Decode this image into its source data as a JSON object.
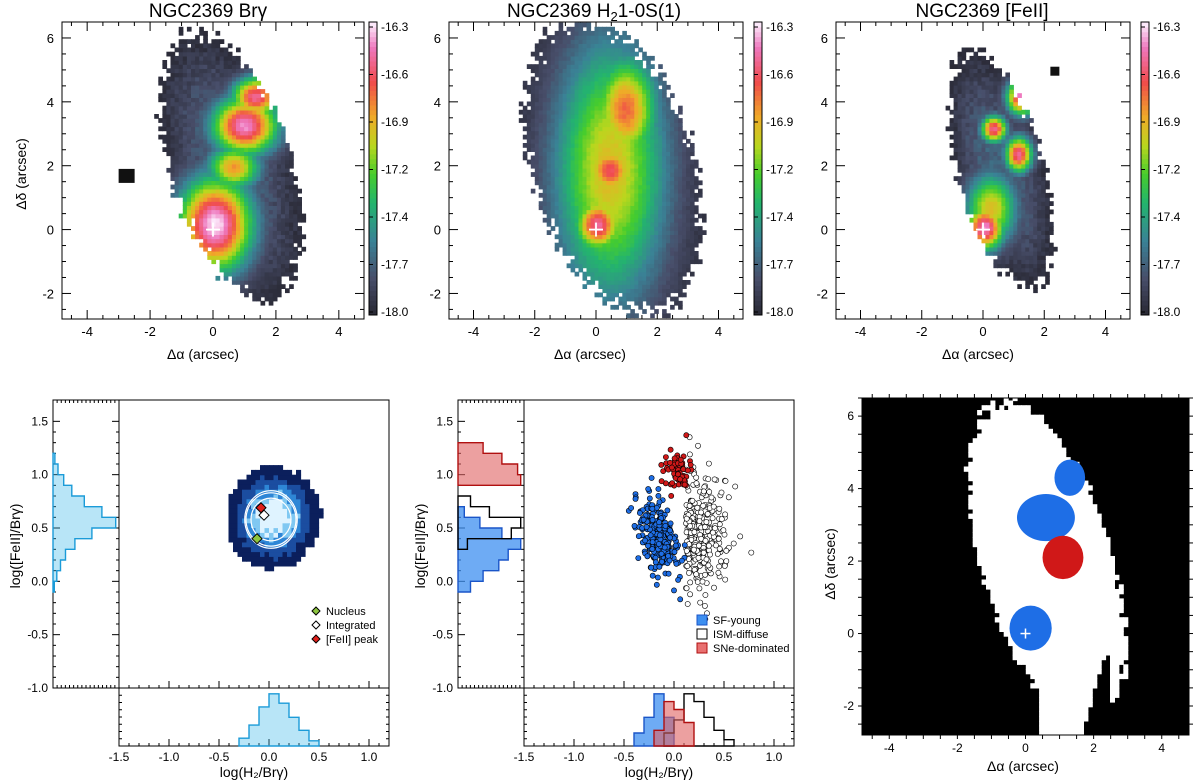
{
  "figure": {
    "top_row": [
      {
        "title_main": "NGC2369 Br",
        "title_greek": "γ",
        "xlabel": "Δα (arcsec)",
        "ylabel": "Δδ (arcsec)"
      },
      {
        "title_main": "NGC2369 H",
        "title_sub": "2",
        "title_rest": "1-0S(1)",
        "xlabel": "Δα (arcsec)"
      },
      {
        "title_main": "NGC2369 [FeII]",
        "xlabel": "Δα (arcsec)"
      }
    ],
    "bottom_left": {
      "ylabel": "log([FeII]/Brγ)",
      "xlabel": "log(H₂/Brγ)"
    },
    "bottom_mid": {
      "ylabel": "log([FeII]/Brγ)",
      "xlabel": "log(H₂/Brγ)"
    },
    "bottom_right": {
      "xlabel": "Δα (arcsec)",
      "ylabel": "Δδ (arcsec)"
    }
  },
  "chart_data": [
    {
      "type": "heatmap",
      "panel": "brgamma_map",
      "title": "NGC2369 Brγ",
      "xlabel": "Δα (arcsec)",
      "ylabel": "Δδ (arcsec)",
      "xlim": [
        -4.8,
        4.8
      ],
      "ylim": [
        -2.8,
        6.5
      ],
      "xticks": [
        -4,
        -2,
        0,
        2,
        4
      ],
      "yticks": [
        -2,
        0,
        2,
        4,
        6
      ],
      "colorbar": {
        "ticks": [
          "-16.3",
          "-16.6",
          "-16.9",
          "-17.2",
          "-17.4",
          "-17.7",
          "-18.0"
        ],
        "range": [
          -18.0,
          -16.3
        ]
      },
      "blobs": [
        {
          "x": 0.0,
          "y": 0.1,
          "sx": 0.85,
          "sy": 1.05,
          "peak": -16.3
        },
        {
          "x": 0.95,
          "y": 3.2,
          "sx": 0.75,
          "sy": 0.65,
          "peak": -16.4
        },
        {
          "x": 1.3,
          "y": 4.1,
          "sx": 0.55,
          "sy": 0.45,
          "peak": -16.5
        },
        {
          "x": 0.6,
          "y": 1.9,
          "sx": 0.6,
          "sy": 0.5,
          "peak": -16.8
        }
      ],
      "extent": {
        "x": 0.5,
        "y": 1.9,
        "rx": 1.9,
        "ry": 4.3,
        "angle": -18
      },
      "marker": {
        "x": 0,
        "y": 0
      }
    },
    {
      "type": "heatmap",
      "panel": "h2_map",
      "title": "NGC2369 H21-0S(1)",
      "xlabel": "Δα (arcsec)",
      "xlim": [
        -4.8,
        4.8
      ],
      "ylim": [
        -2.8,
        6.5
      ],
      "xticks": [
        -4,
        -2,
        0,
        2,
        4
      ],
      "yticks": [
        -2,
        0,
        2,
        4,
        6
      ],
      "colorbar": {
        "ticks": [
          "-16.3",
          "-16.6",
          "-16.9",
          "-17.2",
          "-17.4",
          "-17.7",
          "-18.0"
        ],
        "range": [
          -18.0,
          -16.3
        ]
      },
      "blobs": [
        {
          "x": 0.0,
          "y": 0.1,
          "sx": 0.55,
          "sy": 0.6,
          "peak": -16.5
        },
        {
          "x": 0.4,
          "y": 1.8,
          "sx": 0.6,
          "sy": 0.6,
          "peak": -16.6
        },
        {
          "x": 0.9,
          "y": 3.7,
          "sx": 0.75,
          "sy": 1.2,
          "peak": -16.7
        },
        {
          "x": 0.4,
          "y": 1.8,
          "sx": 1.3,
          "sy": 2.9,
          "peak": -16.9
        }
      ],
      "extent": {
        "x": 0.5,
        "y": 1.9,
        "rx": 2.6,
        "ry": 4.7,
        "angle": -18
      },
      "marker": {
        "x": 0,
        "y": 0
      }
    },
    {
      "type": "heatmap",
      "panel": "feii_map",
      "title": "NGC2369 [FeII]",
      "xlabel": "Δα (arcsec)",
      "xlim": [
        -4.8,
        4.8
      ],
      "ylim": [
        -2.8,
        6.5
      ],
      "xticks": [
        -4,
        -2,
        0,
        2,
        4
      ],
      "yticks": [
        -2,
        0,
        2,
        4,
        6
      ],
      "colorbar": {
        "ticks": [
          "-16.3",
          "-16.6",
          "-16.9",
          "-17.2",
          "-17.4",
          "-17.7",
          "-18.0"
        ],
        "range": [
          -18.0,
          -16.3
        ]
      },
      "blobs": [
        {
          "x": 0.0,
          "y": 0.0,
          "sx": 0.45,
          "sy": 0.5,
          "peak": -16.4
        },
        {
          "x": 1.2,
          "y": 4.1,
          "sx": 0.35,
          "sy": 0.4,
          "peak": -16.4
        },
        {
          "x": 0.3,
          "y": 3.1,
          "sx": 0.3,
          "sy": 0.3,
          "peak": -16.5
        },
        {
          "x": 1.1,
          "y": 2.3,
          "sx": 0.32,
          "sy": 0.4,
          "peak": -16.5
        },
        {
          "x": 0.2,
          "y": 0.6,
          "sx": 0.6,
          "sy": 0.8,
          "peak": -16.9
        }
      ],
      "extent": {
        "x": 0.5,
        "y": 1.8,
        "rx": 1.4,
        "ry": 3.8,
        "angle": -16
      },
      "marker": {
        "x": 0,
        "y": 0
      }
    },
    {
      "type": "heatmap",
      "panel": "density_diagram",
      "xlabel": "log(H₂/Brγ)",
      "ylabel": "log([FeII]/Brγ)",
      "xlim": [
        -1.5,
        1.2
      ],
      "ylim": [
        -1.0,
        1.7
      ],
      "xticks": [
        -1.5,
        -1.0,
        -0.5,
        0.0,
        0.5,
        1.0
      ],
      "yticks": [
        -1.0,
        -0.5,
        0.0,
        0.5,
        1.0,
        1.5
      ],
      "density_center": {
        "x": 0.02,
        "y": 0.58
      },
      "legend": [
        "Nucleus",
        "Integrated",
        "[FeII] peak"
      ],
      "points": [
        {
          "name": "Nucleus",
          "x": -0.12,
          "y": 0.4,
          "color": "#8dc63f"
        },
        {
          "name": "Integrated",
          "x": -0.05,
          "y": 0.62,
          "color": "#ffffff"
        },
        {
          "name": "[FeII] peak",
          "x": -0.08,
          "y": 0.69,
          "color": "#e0201b"
        }
      ],
      "y_hist": {
        "bins": [
          -0.1,
          0.0,
          0.1,
          0.2,
          0.3,
          0.4,
          0.5,
          0.6,
          0.7,
          0.8,
          0.9,
          1.0,
          1.1,
          1.2
        ],
        "counts": [
          0.02,
          0.06,
          0.12,
          0.2,
          0.35,
          0.62,
          1.0,
          0.78,
          0.5,
          0.3,
          0.17,
          0.08,
          0.03
        ]
      },
      "x_hist": {
        "bins": [
          -0.3,
          -0.2,
          -0.1,
          0.0,
          0.1,
          0.2,
          0.3,
          0.4,
          0.5
        ],
        "counts": [
          0.15,
          0.4,
          0.75,
          1.0,
          0.82,
          0.55,
          0.3,
          0.1
        ]
      },
      "color": "#34b4e8"
    },
    {
      "type": "scatter",
      "panel": "class_diagram",
      "xlabel": "log(H₂/Brγ)",
      "ylabel": "log([FeII]/Brγ)",
      "xlim": [
        -1.5,
        1.2
      ],
      "ylim": [
        -1.0,
        1.7
      ],
      "xticks": [
        -1.5,
        -1.0,
        -0.5,
        0.0,
        0.5,
        1.0
      ],
      "yticks": [
        -1.0,
        -0.5,
        0.0,
        0.5,
        1.0,
        1.5
      ],
      "series": [
        {
          "name": "SF-young",
          "color": "#1e6ee6",
          "cx": -0.15,
          "cy": 0.42,
          "sx": 0.09,
          "sy": 0.2,
          "n": 260
        },
        {
          "name": "ISM-diffuse",
          "color": "#ffffff",
          "cx": 0.22,
          "cy": 0.48,
          "sx": 0.17,
          "sy": 0.28,
          "n": 330
        },
        {
          "name": "SNe-dominated",
          "color": "#d01818",
          "cx": 0.03,
          "cy": 1.03,
          "sx": 0.07,
          "sy": 0.09,
          "n": 60
        }
      ],
      "y_hist": [
        {
          "name": "SF-young",
          "bins": [
            -0.1,
            0.0,
            0.1,
            0.2,
            0.3,
            0.4,
            0.5,
            0.6,
            0.7
          ],
          "counts": [
            0.2,
            0.4,
            0.65,
            0.8,
            1.0,
            0.7,
            0.35,
            0.1
          ]
        },
        {
          "name": "ISM-diffuse",
          "bins": [
            0.3,
            0.4,
            0.5,
            0.6,
            0.7,
            0.8
          ],
          "counts": [
            0.15,
            0.85,
            1.0,
            0.5,
            0.2
          ]
        },
        {
          "name": "SNe-dominated",
          "bins": [
            0.9,
            1.0,
            1.1,
            1.2,
            1.3
          ],
          "counts": [
            1.0,
            0.95,
            0.7,
            0.4
          ]
        }
      ],
      "x_hist": [
        {
          "name": "SF-young",
          "bins": [
            -0.4,
            -0.3,
            -0.2,
            -0.1,
            0.0
          ],
          "counts": [
            0.25,
            0.55,
            1.0,
            0.55
          ]
        },
        {
          "name": "ISM-diffuse",
          "bins": [
            -0.1,
            0.0,
            0.1,
            0.2,
            0.3,
            0.4,
            0.5,
            0.6
          ],
          "counts": [
            0.25,
            0.5,
            1.0,
            0.85,
            0.55,
            0.3,
            0.12
          ]
        },
        {
          "name": "SNe-dominated",
          "bins": [
            -0.2,
            -0.1,
            0.0,
            0.1,
            0.2
          ],
          "counts": [
            0.3,
            0.85,
            0.7,
            0.45
          ]
        }
      ]
    },
    {
      "type": "heatmap",
      "panel": "class_map",
      "xlabel": "Δα (arcsec)",
      "ylabel": "Δδ (arcsec)",
      "xlim": [
        -4.8,
        4.8
      ],
      "ylim": [
        -2.8,
        6.5
      ],
      "xticks": [
        -4,
        -2,
        0,
        2,
        4
      ],
      "yticks": [
        -2,
        0,
        2,
        4,
        6
      ],
      "regions": [
        {
          "name": "SF-young",
          "x": 1.3,
          "y": 4.3,
          "rx": 0.45,
          "ry": 0.5,
          "color": "#1e6ee6"
        },
        {
          "name": "SF-young",
          "x": 0.6,
          "y": 3.2,
          "rx": 0.85,
          "ry": 0.65,
          "color": "#1e6ee6"
        },
        {
          "name": "SNe-dominated",
          "x": 1.1,
          "y": 2.1,
          "rx": 0.6,
          "ry": 0.6,
          "color": "#d01818"
        },
        {
          "name": "SF-young",
          "x": 0.15,
          "y": 0.15,
          "rx": 0.62,
          "ry": 0.62,
          "color": "#1e6ee6"
        }
      ],
      "marker": {
        "x": 0,
        "y": 0
      }
    }
  ]
}
